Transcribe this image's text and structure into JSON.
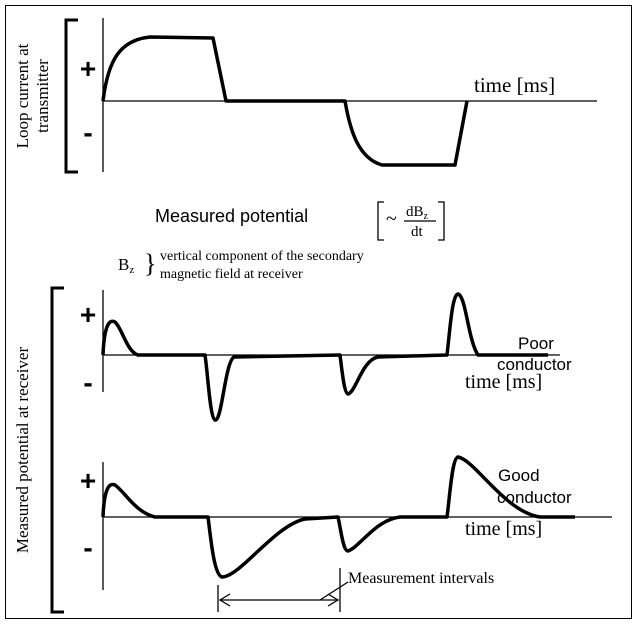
{
  "transmitter": {
    "y_label": [
      "Loop current at",
      "transmitter"
    ],
    "plus": "+",
    "minus": "-",
    "axis_label": "time [ms]"
  },
  "formula": {
    "label": "Measured potential",
    "approx": "~",
    "numerator": "dB",
    "numerator_sub": "z",
    "denominator": "dt"
  },
  "bz_note": {
    "symbol": "B",
    "sub": "z",
    "lines": [
      "vertical component of the secondary",
      "magnetic field at receiver"
    ]
  },
  "receiver": {
    "y_label": "Measured potential at receiver",
    "traces": [
      {
        "name": [
          "Poor",
          "conductor"
        ],
        "plus": "+",
        "minus": "-",
        "axis_label": "time [ms]"
      },
      {
        "name": [
          "Good",
          "conductor"
        ],
        "plus": "+",
        "minus": "-",
        "axis_label": "time [ms]"
      }
    ]
  },
  "annotation": "Measurement intervals"
}
